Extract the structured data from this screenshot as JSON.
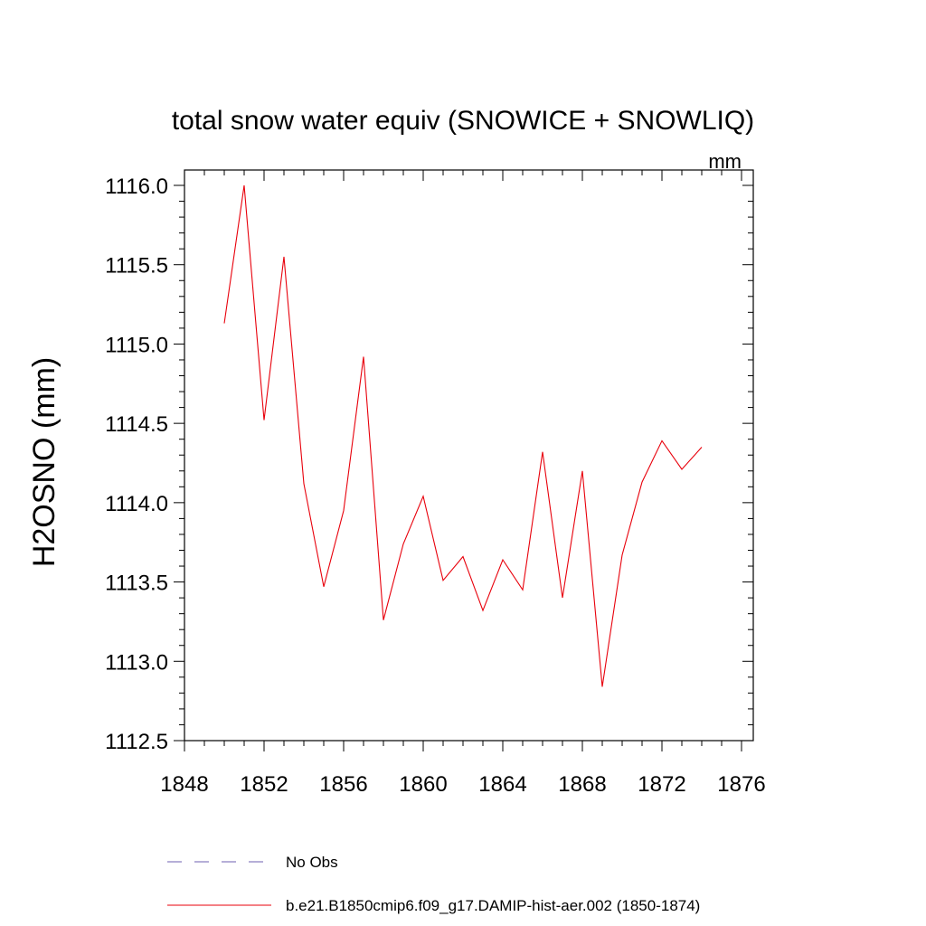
{
  "chart_data": {
    "type": "line",
    "title": "total snow water equiv (SNOWICE + SNOWLIQ)",
    "units": "mm",
    "ylabel": "H2OSNO  (mm)",
    "xlabel": "",
    "xlim": [
      1848,
      1876
    ],
    "ylim": [
      1112.5,
      1116.0
    ],
    "x_ticks": [
      1848,
      1852,
      1856,
      1860,
      1864,
      1868,
      1872,
      1876
    ],
    "x_tick_labels": [
      "1848",
      "1852",
      "1856",
      "1860",
      "1864",
      "1868",
      "1872",
      "1876"
    ],
    "y_ticks": [
      1112.5,
      1113.0,
      1113.5,
      1114.0,
      1114.5,
      1115.0,
      1115.5,
      1116.0
    ],
    "y_tick_labels": [
      "1112.5",
      "1113.0",
      "1113.5",
      "1114.0",
      "1114.5",
      "1115.0",
      "1115.5",
      "1116.0"
    ],
    "grid": false,
    "legend_position": "bottom",
    "series": [
      {
        "name": "b.e21.B1850cmip6.f09_g17.DAMIP-hist-aer.002 (1850-1874)",
        "color": "#e8000b",
        "style": "solid",
        "x": [
          1850,
          1851,
          1852,
          1853,
          1854,
          1855,
          1856,
          1857,
          1858,
          1859,
          1860,
          1861,
          1862,
          1863,
          1864,
          1865,
          1866,
          1867,
          1868,
          1869,
          1870,
          1871,
          1872,
          1873,
          1874
        ],
        "y": [
          1115.13,
          1116.0,
          1114.52,
          1115.55,
          1114.12,
          1113.47,
          1113.95,
          1114.92,
          1113.26,
          1113.74,
          1114.04,
          1113.51,
          1113.66,
          1113.32,
          1113.64,
          1113.45,
          1114.32,
          1113.4,
          1114.2,
          1112.84,
          1113.67,
          1114.13,
          1114.39,
          1114.21,
          1114.35
        ]
      },
      {
        "name": "No Obs",
        "color": "#6e5fb0",
        "style": "dashed",
        "x": [],
        "y": []
      }
    ]
  }
}
